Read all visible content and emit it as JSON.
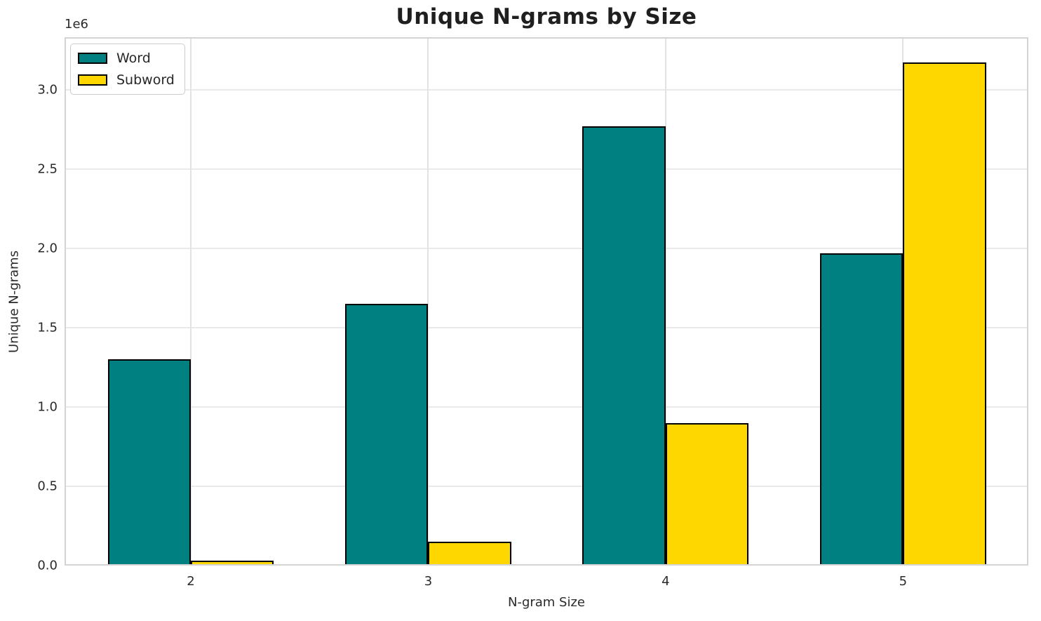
{
  "chart_data": {
    "type": "bar",
    "title": "Unique N-grams by Size",
    "xlabel": "N-gram Size",
    "ylabel": "Unique N-grams",
    "y_offset_text": "1e6",
    "categories": [
      "2",
      "3",
      "4",
      "5"
    ],
    "series": [
      {
        "name": "Word",
        "color": "#008080",
        "values": [
          1300000,
          1650000,
          2770000,
          1970000
        ]
      },
      {
        "name": "Subword",
        "color": "#FFD700",
        "values": [
          30000,
          150000,
          900000,
          3170000
        ]
      }
    ],
    "edge_color": "#000000",
    "ylim": [
      0,
      3330000
    ],
    "yticks": [
      0,
      500000,
      1000000,
      1500000,
      2000000,
      2500000,
      3000000
    ],
    "ytick_labels": [
      "0.0",
      "0.5",
      "1.0",
      "1.5",
      "2.0",
      "2.5",
      "3.0"
    ],
    "grid": true,
    "legend_position": "upper left"
  }
}
